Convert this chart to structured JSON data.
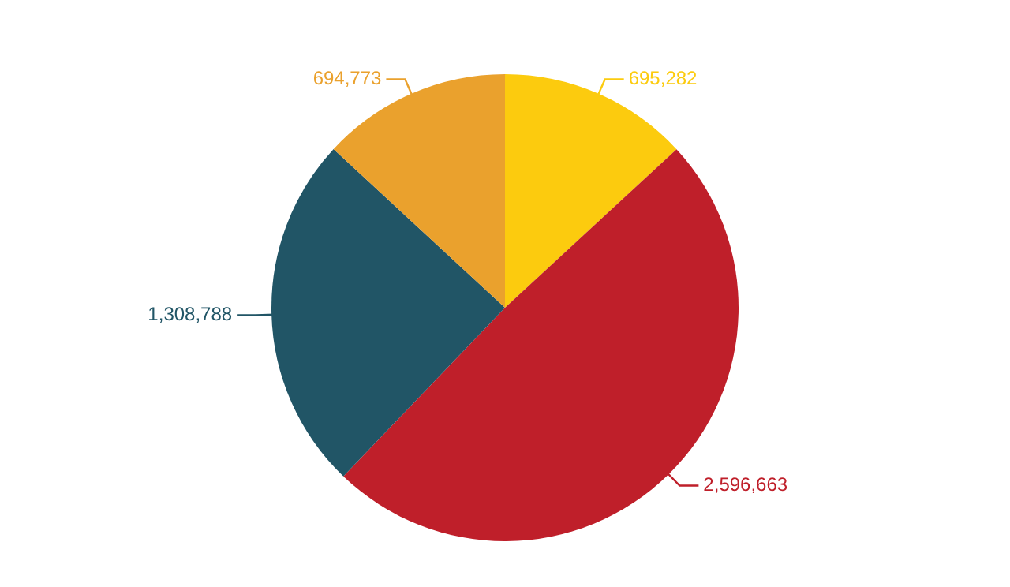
{
  "chart_data": {
    "type": "pie",
    "categories": [
      null,
      null,
      null,
      null
    ],
    "values": [
      695282,
      2596663,
      1308788,
      694773
    ],
    "value_labels": [
      "695,282",
      "2,596,663",
      "1,308,788",
      "694,773"
    ],
    "colors": [
      "#fccb0e",
      "#bf1f2a",
      "#215566",
      "#eaa12d"
    ],
    "legend": false
  }
}
